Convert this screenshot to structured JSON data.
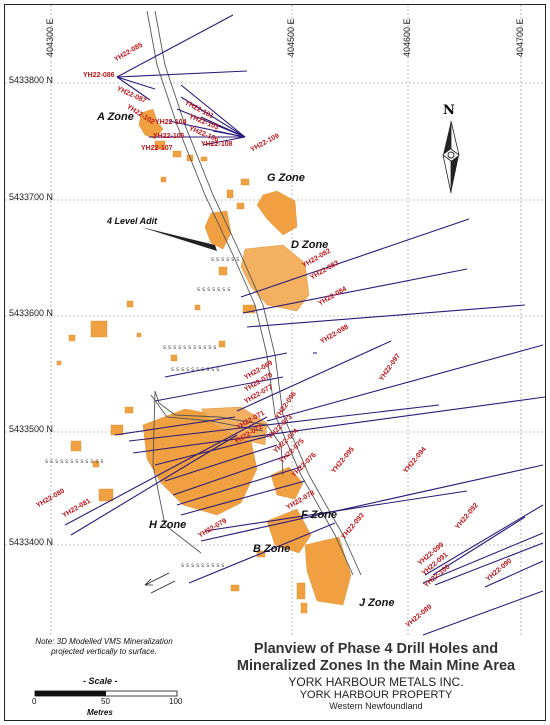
{
  "easting_labels": [
    "404300 E",
    "404500 E",
    "404600 E",
    "404700 E"
  ],
  "northing_labels": [
    "5433800 N",
    "5433700 N",
    "5433600 N",
    "5433500 N",
    "5433400 N"
  ],
  "drill_holes": [
    "YH22-085",
    "YH22-086",
    "YH22-087",
    "YH22-102",
    "YH22-101",
    "YH22-103",
    "YH22-106",
    "YH22-104",
    "YH22-105",
    "YH22-107",
    "YH22-108",
    "YH22-109",
    "YH22-082",
    "YH22-083",
    "YH22-084",
    "YH22-098",
    "YH22-097",
    "YH22-069",
    "YH22-070",
    "YH22-077",
    "YH22-096",
    "YH22-071",
    "YH22-072",
    "YH22-073",
    "YH22-074",
    "YH22-075",
    "YH22-076",
    "YH22-095",
    "YH22-094",
    "YH22-080",
    "YH22-081",
    "YH22-078",
    "YH22-079",
    "YH22-093",
    "YH22-092",
    "YH22-099",
    "YH22-091",
    "YH22-100",
    "YH22-090",
    "YH22-089"
  ],
  "zones": [
    "A Zone",
    "G Zone",
    "D Zone",
    "H Zone",
    "F Zone",
    "B Zone",
    "J Zone"
  ],
  "adit_label": "4 Level Adit",
  "north_letter": "N",
  "note": "Note: 3D Modelled VMS Mineralization projected vertically to surface.",
  "scale": {
    "title": "- Scale -",
    "ticks": [
      "0",
      "50",
      "100"
    ],
    "unit": "Metres",
    "range_m": [
      0,
      100
    ]
  },
  "title": {
    "line1": "Planview of Phase 4 Drill Holes and",
    "line2": "Mineralized Zones In the Main Mine Area",
    "company": "YORK HARBOUR METALS INC.",
    "property": "YORK HARBOUR PROPERTY",
    "region": "Western Newfoundland"
  },
  "colors": {
    "drill_trace": "#2b1a7a",
    "hole_label": "#c0151b",
    "mineralization": "#f0a040",
    "road": "#555555",
    "grid": "#888888"
  }
}
